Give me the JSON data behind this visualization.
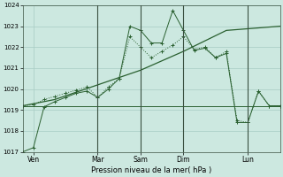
{
  "xlabel": "Pression niveau de la mer( hPa )",
  "bg_color": "#cce8e0",
  "grid_color": "#a8ccc4",
  "line_color": "#2a6030",
  "ylim": [
    1017,
    1024
  ],
  "yticks": [
    1017,
    1018,
    1019,
    1020,
    1021,
    1022,
    1023,
    1024
  ],
  "xlim": [
    0,
    48
  ],
  "xtick_positions": [
    2,
    14,
    22,
    30,
    42
  ],
  "xtick_labels": [
    "Ven",
    "Mar",
    "Sam",
    "Dim",
    "Lun"
  ],
  "vlines": [
    14,
    22,
    30,
    42
  ],
  "line1_x": [
    0,
    2,
    4,
    6,
    8,
    10,
    12,
    14,
    16,
    18,
    20,
    22,
    24,
    26,
    28,
    30,
    32,
    34,
    36,
    38,
    40,
    42,
    44,
    46,
    48
  ],
  "line1_y": [
    1017.0,
    1017.2,
    1019.15,
    1019.4,
    1019.6,
    1019.8,
    1019.9,
    1019.6,
    1020.0,
    1020.5,
    1023.0,
    1022.8,
    1022.2,
    1022.2,
    1023.75,
    1022.8,
    1021.85,
    1021.95,
    1021.5,
    1021.7,
    1018.4,
    1018.4,
    1019.9,
    1019.2,
    1019.2
  ],
  "line2_x": [
    0,
    2,
    4,
    6,
    8,
    10,
    12,
    14,
    16,
    18,
    20,
    22,
    24,
    26,
    28,
    30,
    32,
    34,
    36,
    38,
    40,
    42,
    44,
    46,
    48
  ],
  "line2_y": [
    1019.2,
    1019.25,
    1019.5,
    1019.65,
    1019.8,
    1019.95,
    1020.1,
    1019.6,
    1020.1,
    1020.5,
    1022.5,
    1022.0,
    1021.5,
    1021.8,
    1022.1,
    1022.5,
    1021.9,
    1022.0,
    1021.5,
    1021.8,
    1018.5,
    1018.4,
    1019.9,
    1019.2,
    1019.2
  ],
  "line3_x": [
    0,
    6,
    14,
    22,
    30,
    38,
    48
  ],
  "line3_y": [
    1019.2,
    1019.5,
    1020.2,
    1020.9,
    1021.8,
    1022.8,
    1023.0
  ],
  "line4_x": [
    0,
    14,
    40,
    48
  ],
  "line4_y": [
    1019.2,
    1019.2,
    1019.2,
    1019.2
  ]
}
